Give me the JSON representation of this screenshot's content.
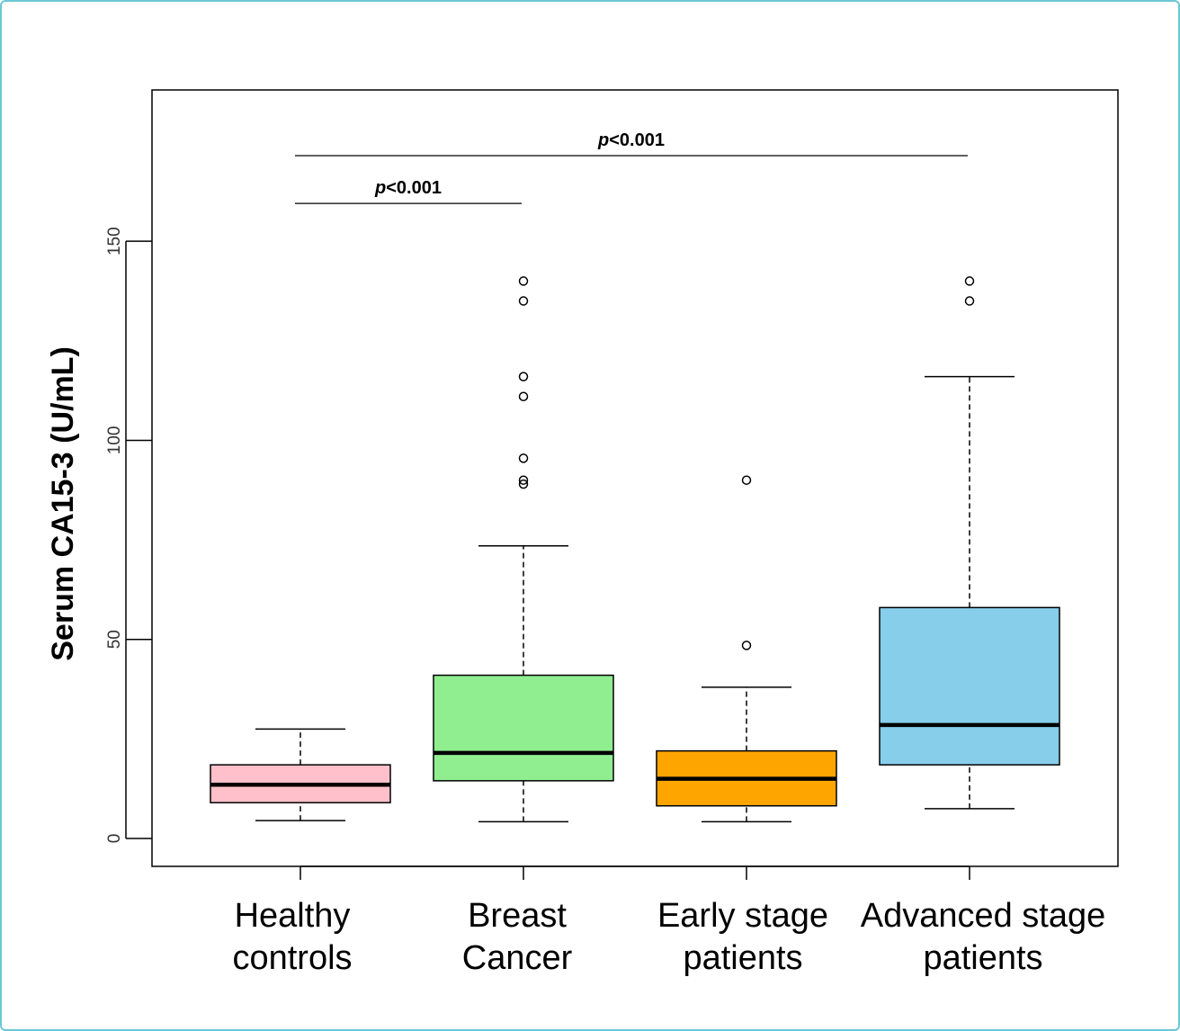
{
  "chart_data": {
    "type": "box",
    "ylabel": "Serum CA15-3 (U/mL)",
    "ylim": [
      -7,
      188
    ],
    "yticks": [
      0,
      50,
      100,
      150
    ],
    "categories": [
      {
        "line1": "Healthy",
        "line2": "controls"
      },
      {
        "line1": "Breast",
        "line2": "Cancer"
      },
      {
        "line1": "Early stage",
        "line2": "patients"
      },
      {
        "line1": "Advanced stage",
        "line2": "patients"
      }
    ],
    "boxes": [
      {
        "whisker_low": 4.5,
        "q1": 9,
        "median": 13.5,
        "q3": 18.5,
        "whisker_high": 27.5,
        "outliers": [],
        "color": "#ffc0cb"
      },
      {
        "whisker_low": 4.2,
        "q1": 14.5,
        "median": 21.5,
        "q3": 41,
        "whisker_high": 73.5,
        "outliers": [
          140,
          135,
          116,
          111,
          95.5,
          90,
          89
        ],
        "color": "#90ee90"
      },
      {
        "whisker_low": 4.2,
        "q1": 8.2,
        "median": 15,
        "q3": 22,
        "whisker_high": 38,
        "outliers": [
          90,
          48.5
        ],
        "color": "#ffa500"
      },
      {
        "whisker_low": 7.5,
        "q1": 18.5,
        "median": 28.5,
        "q3": 58,
        "whisker_high": 116,
        "outliers": [
          140,
          135
        ],
        "color": "#87ceeb"
      }
    ],
    "annotations": [
      {
        "from": 0,
        "to": 1,
        "y": 159.5,
        "p_symbol": "p",
        "p_value": "<0.001"
      },
      {
        "from": 0,
        "to": 3,
        "y": 171.5,
        "p_symbol": "p",
        "p_value": "<0.001"
      }
    ],
    "grid": false
  }
}
